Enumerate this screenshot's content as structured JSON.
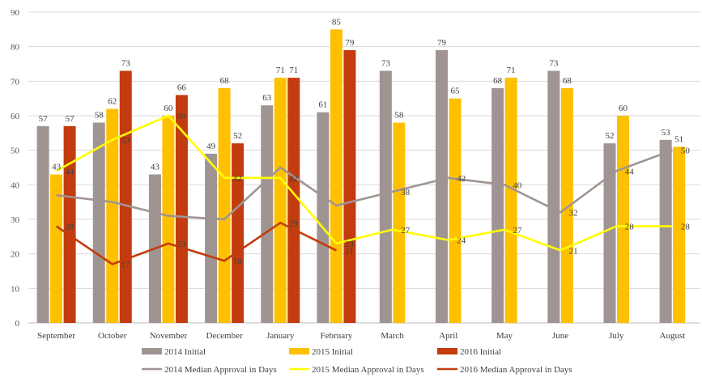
{
  "chart_data": {
    "type": "bar",
    "categories": [
      "September",
      "October",
      "November",
      "December",
      "January",
      "February",
      "March",
      "April",
      "May",
      "June",
      "July",
      "August"
    ],
    "ylim": [
      0,
      90
    ],
    "yticks": [
      0,
      10,
      20,
      30,
      40,
      50,
      60,
      70,
      80,
      90
    ],
    "grid": true,
    "legend_position": "bottom",
    "bar_series": [
      {
        "name": "2014 Initial",
        "color": "#a09493",
        "values": [
          57,
          58,
          43,
          49,
          63,
          61,
          73,
          79,
          68,
          73,
          52,
          53
        ]
      },
      {
        "name": "2015 Initial",
        "color": "#ffc000",
        "values": [
          43,
          62,
          60,
          68,
          71,
          85,
          58,
          65,
          71,
          68,
          60,
          51
        ]
      },
      {
        "name": "2016 Initial",
        "color": "#c33c0e",
        "values": [
          57,
          73,
          66,
          52,
          71,
          79,
          null,
          null,
          null,
          null,
          null,
          null
        ]
      }
    ],
    "line_series": [
      {
        "name": "2014 Median Approval in Days",
        "color": "#a09493",
        "values": [
          37,
          35,
          31,
          30,
          45,
          34,
          38,
          42,
          40,
          32,
          44,
          50
        ],
        "labels": [
          "",
          "",
          "",
          "",
          "",
          "",
          "38",
          "42",
          "40",
          "32",
          "44",
          "50"
        ]
      },
      {
        "name": "2015 Median Approval in Days",
        "color": "#ffff00",
        "values": [
          44,
          53,
          60,
          42,
          42,
          23,
          27,
          24,
          27,
          21,
          28,
          28
        ],
        "labels": [
          "44",
          "53",
          "60",
          "42",
          "42",
          "23",
          "27",
          "24",
          "27",
          "21",
          "28",
          "28"
        ]
      },
      {
        "name": "2016 Median Approval in Days",
        "color": "#c33c0e",
        "values": [
          28,
          17,
          23,
          18,
          29,
          21,
          null,
          null,
          null,
          null,
          null,
          null
        ],
        "labels": [
          "28",
          "17",
          "23",
          "18",
          "29",
          "21",
          "",
          "",
          "",
          "",
          "",
          ""
        ]
      }
    ]
  }
}
